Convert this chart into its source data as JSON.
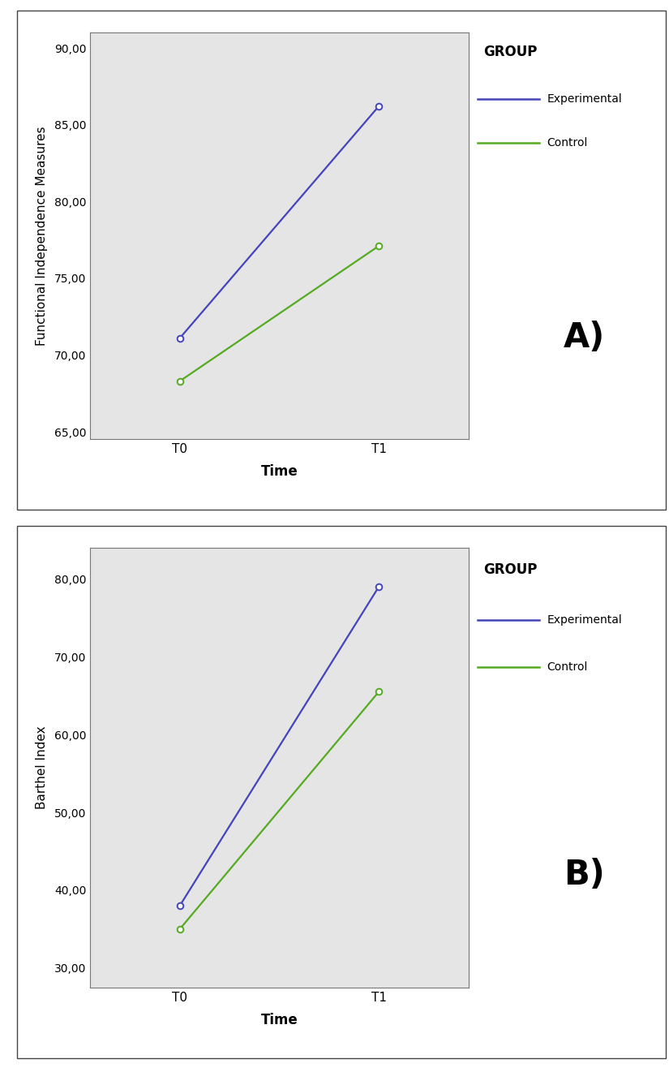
{
  "chart_A": {
    "ylabel": "Functional Independence Measures",
    "xlabel": "Time",
    "xticks": [
      "T0",
      "T1"
    ],
    "ylim": [
      64.5,
      91.0
    ],
    "yticks": [
      65.0,
      70.0,
      75.0,
      80.0,
      85.0,
      90.0
    ],
    "ytick_labels": [
      "65,00",
      "70,00",
      "75,00",
      "80,00",
      "85,00",
      "90,00"
    ],
    "experimental": [
      71.1,
      86.2
    ],
    "control": [
      68.3,
      77.1
    ],
    "panel_label": "A)",
    "legend_title": "GROUP",
    "legend_experimental": "Experimental",
    "legend_control": "Control"
  },
  "chart_B": {
    "ylabel": "Barthel Index",
    "xlabel": "Time",
    "xticks": [
      "T0",
      "T1"
    ],
    "ylim": [
      27.5,
      84.0
    ],
    "yticks": [
      30.0,
      40.0,
      50.0,
      60.0,
      70.0,
      80.0
    ],
    "ytick_labels": [
      "30,00",
      "40,00",
      "50,00",
      "60,00",
      "70,00",
      "80,00"
    ],
    "experimental": [
      38.0,
      79.0
    ],
    "control": [
      35.0,
      65.5
    ],
    "panel_label": "B)",
    "legend_title": "GROUP",
    "legend_experimental": "Experimental",
    "legend_control": "Control"
  },
  "colors": {
    "experimental": "#4444bb",
    "control": "#55aa22",
    "plot_bg": "#e5e5e5",
    "fig_bg": "#ffffff",
    "border": "#555555"
  },
  "figsize": [
    8.25,
    13.37
  ],
  "dpi": 100
}
